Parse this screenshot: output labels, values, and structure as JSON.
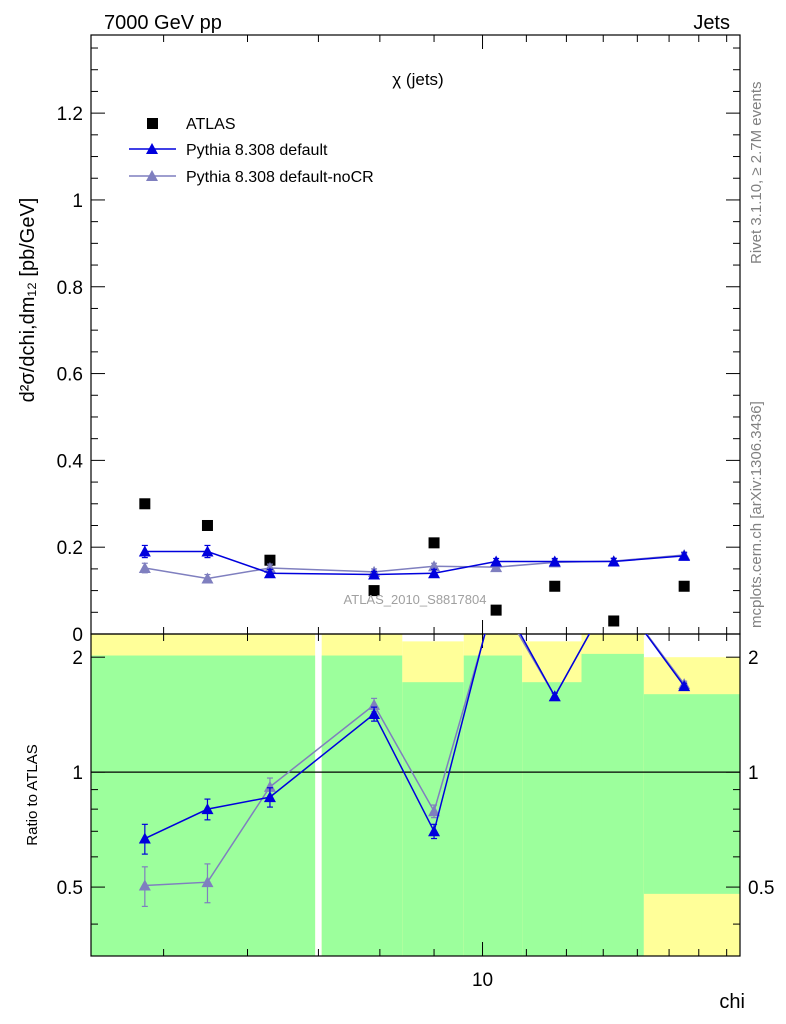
{
  "header": {
    "energy": "7000 GeV pp",
    "process": "Jets",
    "side_label_top": "Rivet 3.1.10, ≥ 2.7M events",
    "side_label_bottom": "mcplots.cern.ch [arXiv:1306.3436]",
    "watermark": "ATLAS_2010_S8817804"
  },
  "colors": {
    "atlas": "#000000",
    "pythia_default": "#0000dd",
    "pythia_nocr": "#7f7fbf",
    "band_inner": "#9cff9c",
    "band_outer": "#ffff99"
  },
  "chart_data": [
    {
      "type": "scatter",
      "panel": "main",
      "title": "χ (jets)",
      "ylabel": "d²σ/dchi,dm₁₂ [pb/GeV]",
      "ylim": [
        0,
        1.38
      ],
      "xlim": [
        4.27,
        17.5
      ],
      "xscale": "log",
      "yticks": [
        "0",
        "0.2",
        "0.4",
        "0.6",
        "0.8",
        "1",
        "1.2"
      ],
      "legend": {
        "placement": "top-left",
        "entries": [
          "ATLAS",
          "Pythia 8.308 default",
          "Pythia 8.308 default-noCR"
        ]
      },
      "x": [
        4.8,
        5.5,
        6.3,
        7.9,
        9.0,
        10.3,
        11.7,
        13.3,
        15.5
      ],
      "series": [
        {
          "name": "ATLAS",
          "values": [
            0.3,
            0.25,
            0.17,
            0.1,
            0.21,
            0.055,
            0.11,
            0.03,
            0.11
          ]
        },
        {
          "name": "Pythia 8.308 default",
          "values": [
            0.19,
            0.19,
            0.14,
            0.137,
            0.14,
            0.167,
            0.167,
            0.167,
            0.18
          ],
          "errors": [
            0.014,
            0.014,
            0.009,
            0.007,
            0.009,
            0.007,
            0.007,
            0.007,
            0.007
          ]
        },
        {
          "name": "Pythia 8.308 default-noCR",
          "values": [
            0.152,
            0.128,
            0.152,
            0.143,
            0.156,
            0.154,
            0.165,
            0.168,
            0.182
          ],
          "errors": [
            0.011,
            0.009,
            0.009,
            0.007,
            0.007,
            0.007,
            0.007,
            0.007,
            0.007
          ]
        }
      ]
    },
    {
      "type": "line",
      "panel": "ratio",
      "ylabel": "Ratio to ATLAS",
      "xlabel": "chi",
      "ylim": [
        0.33,
        2.3
      ],
      "yscale": "log",
      "xlim": [
        4.27,
        17.5
      ],
      "xscale": "log",
      "yticks": [
        "0.5",
        "1",
        "2"
      ],
      "xticks": [
        "10"
      ],
      "bands": [
        {
          "x_range": [
            4.27,
            6.95
          ],
          "inner": [
            0.33,
            2.02
          ],
          "outer": [
            0.33,
            2.3
          ]
        },
        {
          "x_range": [
            7.05,
            8.4
          ],
          "inner": [
            0.33,
            2.02
          ],
          "outer": [
            0.33,
            2.3
          ]
        },
        {
          "x_range": [
            8.4,
            9.6
          ],
          "inner": [
            0.33,
            1.72
          ],
          "outer": [
            0.33,
            2.2
          ]
        },
        {
          "x_range": [
            9.6,
            10.9
          ],
          "inner": [
            0.33,
            2.02
          ],
          "outer": [
            0.33,
            2.3
          ]
        },
        {
          "x_range": [
            10.9,
            12.4
          ],
          "inner": [
            0.33,
            1.72
          ],
          "outer": [
            0.33,
            2.2
          ]
        },
        {
          "x_range": [
            12.4,
            14.2
          ],
          "inner": [
            0.33,
            2.04
          ],
          "outer": [
            0.33,
            2.3
          ]
        },
        {
          "x_range": [
            14.2,
            17.5
          ],
          "inner": [
            0.48,
            1.6
          ],
          "outer": [
            0.33,
            2.0
          ]
        }
      ],
      "x": [
        4.8,
        5.5,
        6.3,
        7.9,
        9.0,
        10.3,
        11.7,
        13.3,
        15.5
      ],
      "series": [
        {
          "name": "Pythia 8.308 default",
          "values": [
            0.67,
            0.8,
            0.86,
            1.42,
            0.7,
            3.0,
            1.58,
            3.0,
            1.68
          ],
          "errors": [
            0.06,
            0.05,
            0.05,
            0.06,
            0.03,
            0,
            0.03,
            0,
            0.03
          ]
        },
        {
          "name": "Pythia 8.308 default-noCR",
          "values": [
            0.505,
            0.515,
            0.915,
            1.5,
            0.79,
            2.9,
            1.58,
            3.0,
            1.7
          ],
          "errors": [
            0.06,
            0.06,
            0.05,
            0.06,
            0.03,
            0,
            0.03,
            0,
            0.03
          ]
        }
      ]
    }
  ]
}
